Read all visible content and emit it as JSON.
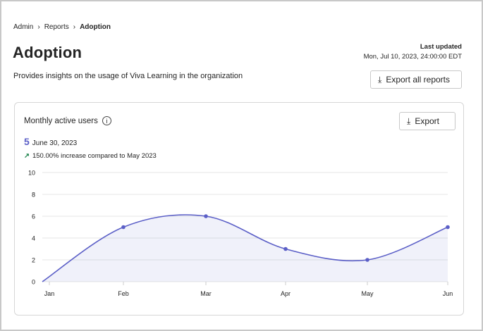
{
  "breadcrumb": [
    "Admin",
    "Reports",
    "Adoption"
  ],
  "page": {
    "title": "Adoption",
    "description": "Provides insights on the usage of Viva Learning in the organization"
  },
  "last_updated": {
    "label": "Last updated",
    "value": "Mon, Jul 10, 2023, 24:00:00 EDT"
  },
  "export_all_label": "Export all reports",
  "card": {
    "title": "Monthly active users",
    "export_label": "Export",
    "value": "5",
    "date": "June 30, 2023",
    "trend": "150.00% increase compared to May 2023"
  },
  "colors": {
    "accent": "#5b5fc7",
    "trend": "#107c41"
  },
  "chart_data": {
    "type": "area",
    "categories": [
      "Jan",
      "Feb",
      "Mar",
      "Apr",
      "May",
      "Jun"
    ],
    "values": [
      0,
      5,
      6,
      3,
      2,
      5
    ],
    "ylim": [
      0,
      10
    ],
    "yticks": [
      "0",
      "2",
      "4",
      "6",
      "8",
      "10"
    ],
    "grid": true,
    "title": "Monthly active users",
    "xlabel": "",
    "ylabel": ""
  }
}
